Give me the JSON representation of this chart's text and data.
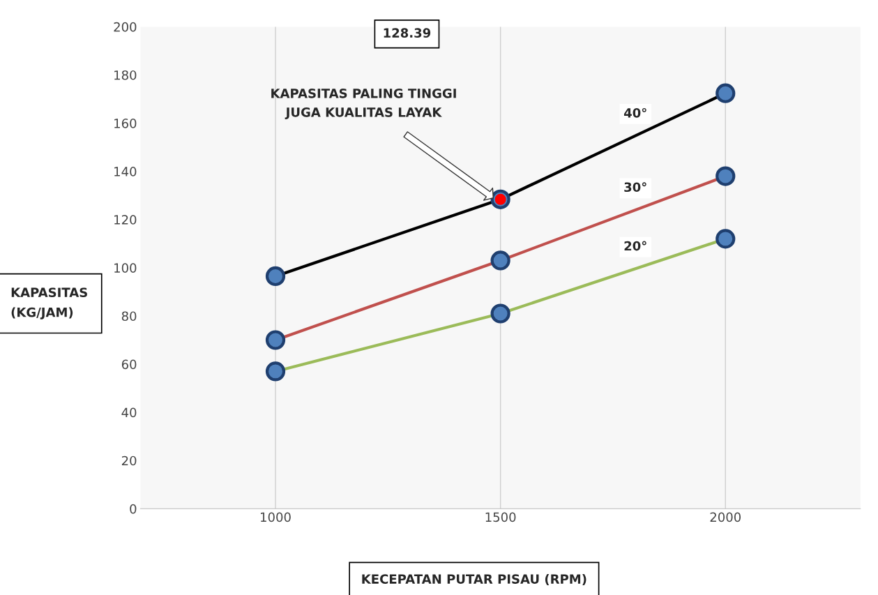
{
  "chart_data": {
    "type": "line",
    "xlabel": "KECEPATAN PUTAR PISAU (RPM)",
    "ylabel": "KAPASITAS\n(KG/JAM)",
    "categories": [
      "1000",
      "1500",
      "2000"
    ],
    "series": [
      {
        "name": "40°",
        "color": "#000000",
        "values": [
          96.5,
          128.39,
          172.4
        ]
      },
      {
        "name": "30°",
        "color": "#c0504d",
        "values": [
          70,
          103,
          138
        ]
      },
      {
        "name": "20°",
        "color": "#9bbb59",
        "values": [
          57,
          81,
          112
        ]
      },
      {
        "type": "scatter",
        "color": "#ff0000",
        "values": [
          null,
          128.39,
          null
        ]
      }
    ],
    "ylim": [
      0,
      200
    ],
    "yticks": [
      0,
      20,
      40,
      60,
      80,
      100,
      120,
      140,
      160,
      180,
      200
    ],
    "grid": "x",
    "marker": "circle",
    "annotations": [
      "128.39",
      "KAPASITAS PALING TINGGI\nJUGA KUALITAS LAYAK"
    ]
  }
}
